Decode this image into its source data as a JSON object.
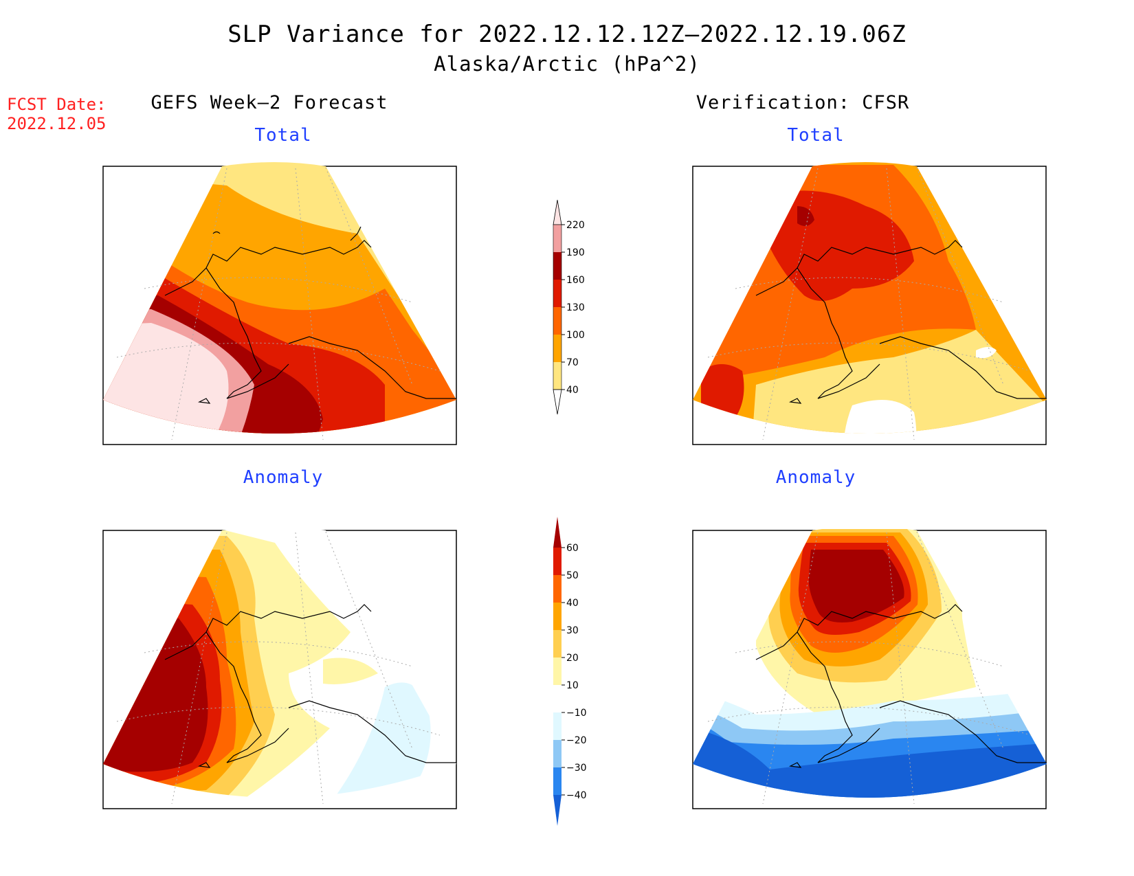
{
  "title": "SLP Variance for 2022.12.12.12Z–2022.12.19.06Z",
  "subtitle": "Alaska/Arctic (hPa^2)",
  "forecast_date": {
    "label": "FCST Date:",
    "value": "2022.12.05"
  },
  "columns": {
    "left": "GEFS Week–2 Forecast",
    "right": "Verification: CFSR"
  },
  "panels": {
    "total": "Total",
    "anomaly": "Anomaly"
  },
  "colors": {
    "title_text": "#000000",
    "fcst_text": "#ff2020",
    "panel_title": "#1f3fff"
  },
  "chart_data": [
    {
      "type": "heatmap",
      "name": "total-colorbar",
      "units": "hPa^2",
      "levels": [
        40,
        70,
        100,
        130,
        160,
        190,
        220
      ],
      "colors": [
        "#ffe680",
        "#ffa500",
        "#ff6600",
        "#e01a00",
        "#a50000",
        "#f2a0a0",
        "#fde4e4"
      ]
    },
    {
      "type": "heatmap",
      "name": "anomaly-colorbar",
      "units": "hPa^2",
      "levels": [
        -40,
        -30,
        -20,
        -10,
        10,
        20,
        30,
        40,
        50,
        60
      ],
      "colors": [
        "#1560d6",
        "#2a86f0",
        "#8ec8f5",
        "#e0f8ff",
        "#ffffff",
        "#fff6a8",
        "#ffcf50",
        "#ffa500",
        "#ff6600",
        "#e01a00",
        "#a50000"
      ]
    }
  ]
}
